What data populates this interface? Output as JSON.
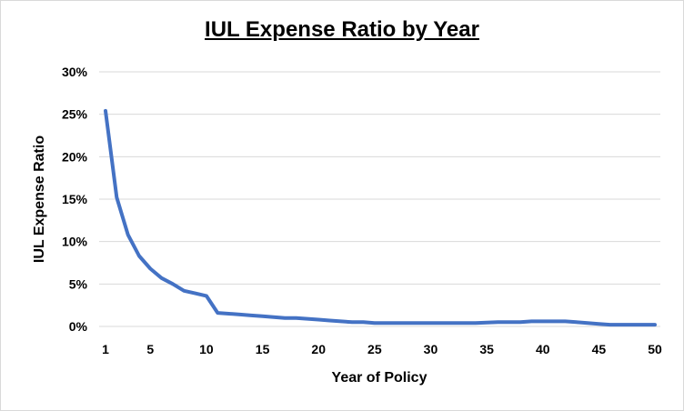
{
  "chart_data": {
    "type": "line",
    "title": "IUL Expense Ratio by Year",
    "xlabel": "Year of Policy",
    "ylabel": "IUL Expense Ratio",
    "xlim": [
      1,
      50
    ],
    "ylim": [
      0,
      30
    ],
    "y_ticks": [
      0,
      5,
      10,
      15,
      20,
      25,
      30
    ],
    "y_tick_labels": [
      "0%",
      "5%",
      "10%",
      "15%",
      "20%",
      "25%",
      "30%"
    ],
    "x_ticks": [
      1,
      5,
      10,
      15,
      20,
      25,
      30,
      35,
      40,
      45,
      50
    ],
    "x_tick_labels": [
      "1",
      "5",
      "10",
      "15",
      "20",
      "25",
      "30",
      "35",
      "40",
      "45",
      "50"
    ],
    "grid": true,
    "legend": "none",
    "series": [
      {
        "color": "#4472C4",
        "x": [
          1,
          2,
          3,
          4,
          5,
          6,
          7,
          8,
          9,
          10,
          11,
          12,
          13,
          14,
          15,
          16,
          17,
          18,
          19,
          20,
          21,
          22,
          23,
          24,
          25,
          26,
          27,
          28,
          29,
          30,
          31,
          32,
          33,
          34,
          35,
          36,
          37,
          38,
          39,
          40,
          41,
          42,
          43,
          44,
          45,
          46,
          47,
          48,
          49,
          50
        ],
        "y": [
          25.4,
          15.2,
          10.8,
          8.3,
          6.8,
          5.7,
          5.0,
          4.2,
          3.9,
          3.6,
          1.6,
          1.5,
          1.4,
          1.3,
          1.2,
          1.1,
          1.0,
          1.0,
          0.9,
          0.8,
          0.7,
          0.6,
          0.5,
          0.5,
          0.4,
          0.4,
          0.4,
          0.4,
          0.4,
          0.4,
          0.4,
          0.4,
          0.4,
          0.4,
          0.45,
          0.5,
          0.5,
          0.5,
          0.6,
          0.6,
          0.6,
          0.6,
          0.5,
          0.4,
          0.3,
          0.2,
          0.2,
          0.2,
          0.2,
          0.2
        ]
      }
    ]
  }
}
